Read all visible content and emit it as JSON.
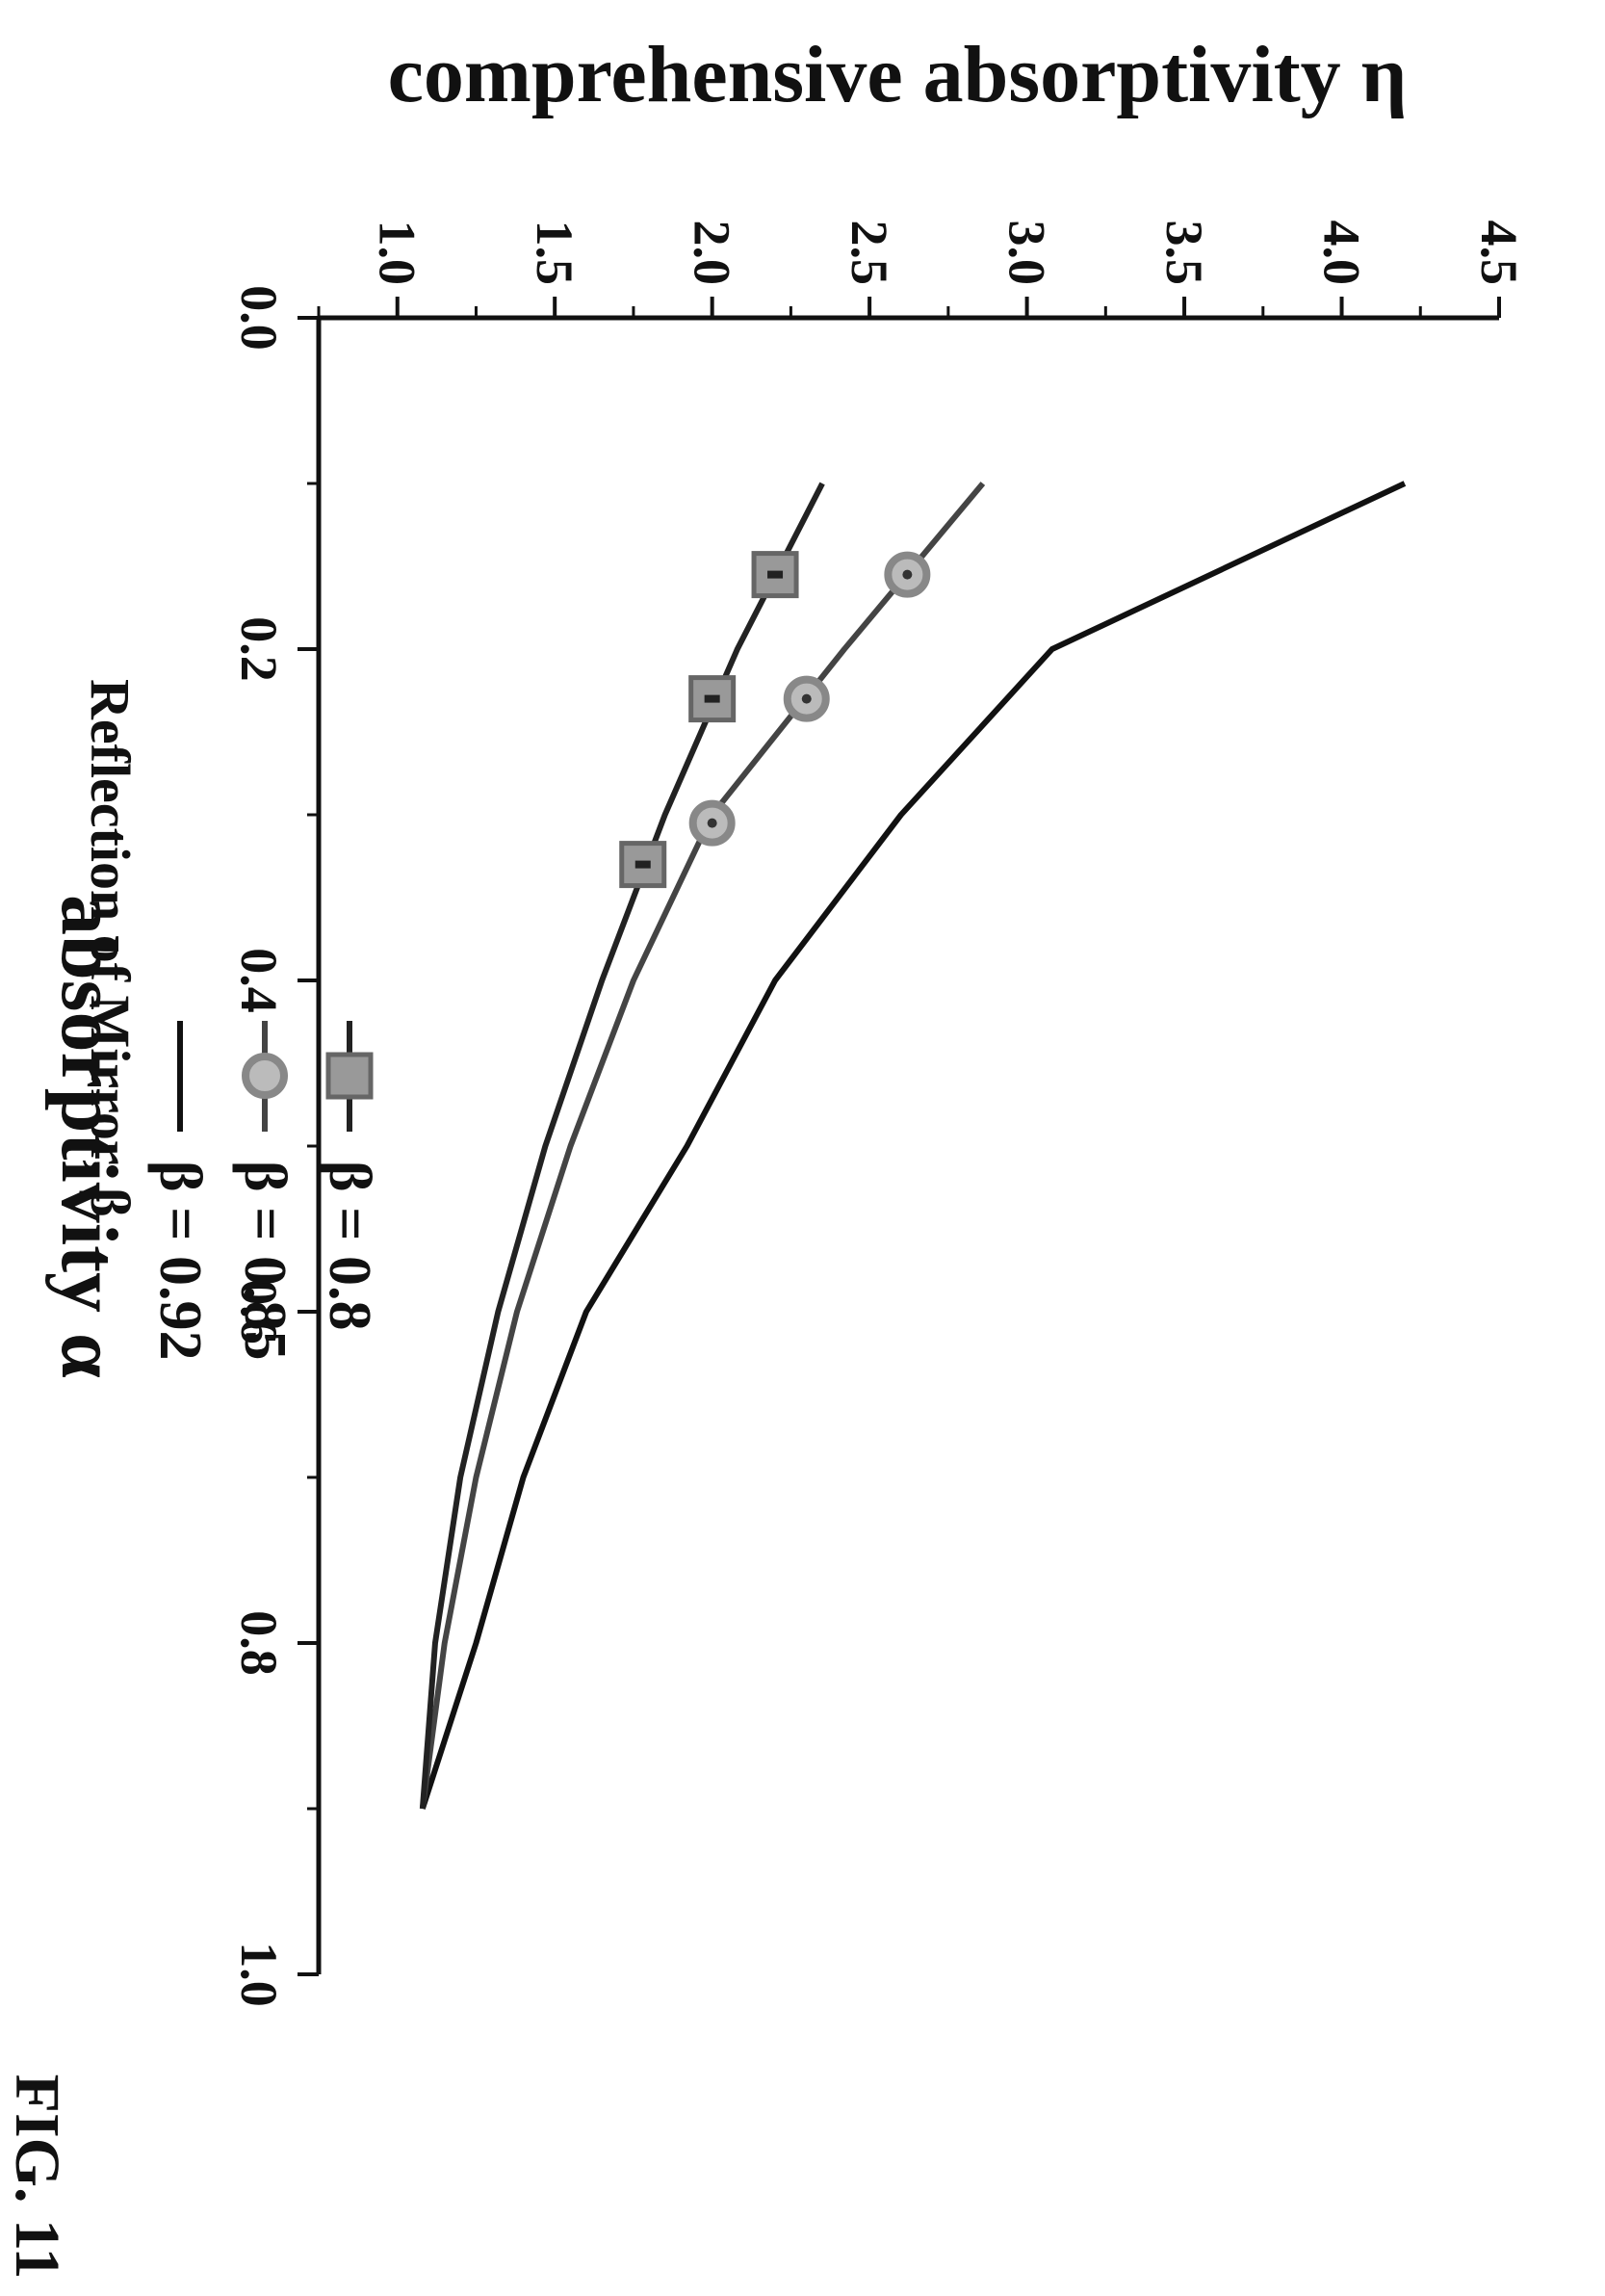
{
  "figure_label": "FIG. 11",
  "chart_data": {
    "type": "line",
    "xlabel": "absorptivity α",
    "ylabel": "comprehensive absorptivity η",
    "xlim": [
      0.0,
      1.0
    ],
    "ylim": [
      0.75,
      4.5
    ],
    "x_ticks": [
      "0.0",
      "0.2",
      "0.4",
      "0.6",
      "0.8",
      "1.0"
    ],
    "y_ticks": [
      "1.0",
      "1.5",
      "2.0",
      "2.5",
      "3.0",
      "3.5",
      "4.0",
      "4.5"
    ],
    "legend_title": "Reflection of Mirror, β",
    "legend_position": "top-right",
    "series": [
      {
        "name": "β = 0.92",
        "marker": "none",
        "x": [
          0.1,
          0.2,
          0.3,
          0.4,
          0.5,
          0.6,
          0.7,
          0.8,
          0.9
        ],
        "y": [
          4.2,
          3.08,
          2.6,
          2.2,
          1.92,
          1.6,
          1.4,
          1.25,
          1.08
        ]
      },
      {
        "name": "β = 0.85",
        "marker": "circle",
        "x": [
          0.1,
          0.2,
          0.3,
          0.4,
          0.5,
          0.6,
          0.7,
          0.8,
          0.9
        ],
        "y": [
          2.86,
          2.42,
          2.0,
          1.75,
          1.55,
          1.38,
          1.25,
          1.15,
          1.08
        ],
        "marker_x": [
          0.155,
          0.23,
          0.305
        ],
        "marker_y": [
          2.62,
          2.3,
          2.0
        ]
      },
      {
        "name": "β = 0.8",
        "marker": "square",
        "x": [
          0.1,
          0.2,
          0.3,
          0.4,
          0.5,
          0.6,
          0.7,
          0.8,
          0.9
        ],
        "y": [
          2.35,
          2.08,
          1.85,
          1.65,
          1.47,
          1.32,
          1.2,
          1.12,
          1.08
        ],
        "marker_x": [
          0.155,
          0.23,
          0.33
        ],
        "marker_y": [
          2.2,
          2.0,
          1.78
        ]
      }
    ]
  }
}
